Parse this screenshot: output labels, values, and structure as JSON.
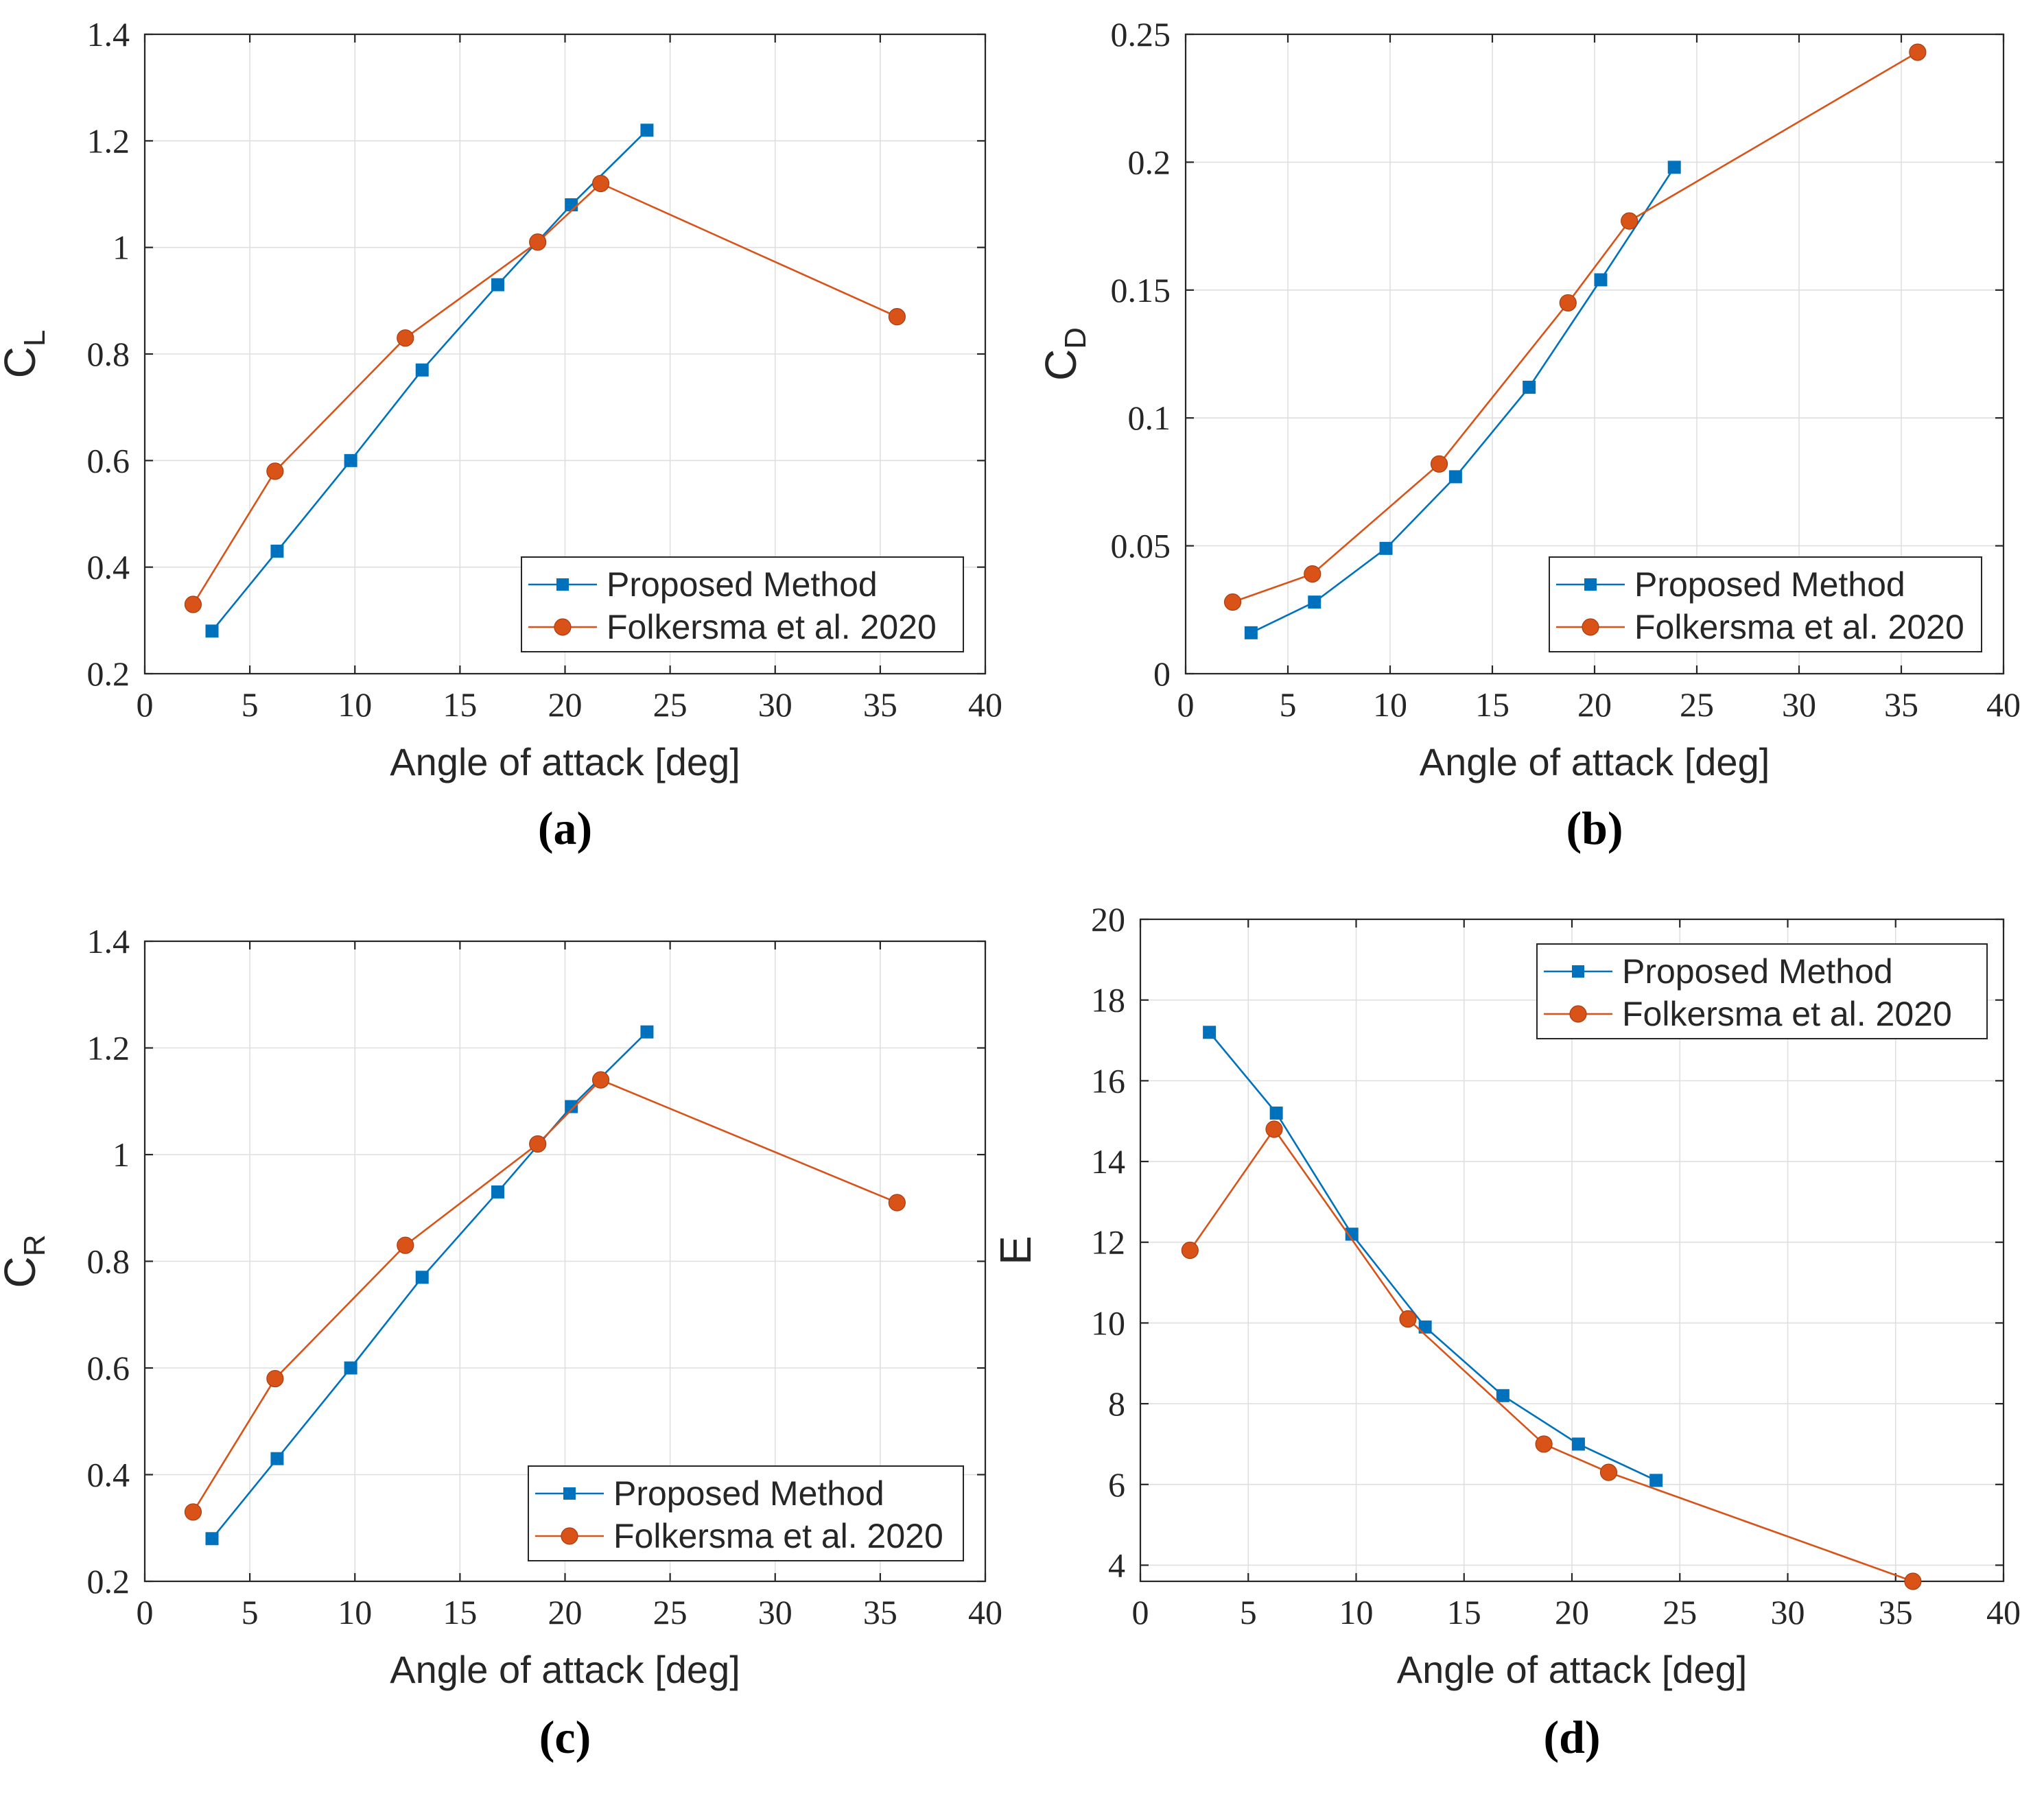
{
  "colors": {
    "proposed": "#0072BD",
    "folkersma": "#D95319",
    "axis": "#262626",
    "grid": "#dfdfdf"
  },
  "legend": {
    "proposed": "Proposed Method",
    "folkersma": "Folkersma et al. 2020"
  },
  "chart_data": [
    {
      "type": "line",
      "caption": "(a)",
      "xlabel": "Angle of attack [deg]",
      "ylabel": {
        "main": "C",
        "sub": "L"
      },
      "xlim": [
        0,
        40
      ],
      "ylim": [
        0.2,
        1.4
      ],
      "xticks": [
        0,
        5,
        10,
        15,
        20,
        25,
        30,
        35,
        40
      ],
      "yticks": [
        0.2,
        0.4,
        0.6,
        0.8,
        1,
        1.2,
        1.4
      ],
      "ytick_labels": [
        "0.2",
        "0.4",
        "0.6",
        "0.8",
        "1",
        "1.2",
        "1.4"
      ],
      "legend_location": "bottom-right",
      "series": [
        {
          "name": "Proposed Method",
          "marker": "square",
          "x": [
            3.2,
            6.3,
            9.8,
            13.2,
            16.8,
            20.3,
            23.9
          ],
          "y": [
            0.28,
            0.43,
            0.6,
            0.77,
            0.93,
            1.08,
            1.22
          ]
        },
        {
          "name": "Folkersma et al. 2020",
          "marker": "circle",
          "x": [
            2.3,
            6.2,
            12.4,
            18.7,
            21.7,
            35.8
          ],
          "y": [
            0.33,
            0.58,
            0.83,
            1.01,
            1.12,
            0.87
          ]
        }
      ]
    },
    {
      "type": "line",
      "caption": "(b)",
      "xlabel": "Angle of attack [deg]",
      "ylabel": {
        "main": "C",
        "sub": "D"
      },
      "xlim": [
        0,
        40
      ],
      "ylim": [
        0,
        0.25
      ],
      "xticks": [
        0,
        5,
        10,
        15,
        20,
        25,
        30,
        35,
        40
      ],
      "yticks": [
        0,
        0.05,
        0.1,
        0.15,
        0.2,
        0.25
      ],
      "ytick_labels": [
        "0",
        "0.05",
        "0.1",
        "0.15",
        "0.2",
        "0.25"
      ],
      "legend_location": "bottom-right",
      "series": [
        {
          "name": "Proposed Method",
          "marker": "square",
          "x": [
            3.2,
            6.3,
            9.8,
            13.2,
            16.8,
            20.3,
            23.9
          ],
          "y": [
            0.016,
            0.028,
            0.049,
            0.077,
            0.112,
            0.154,
            0.198
          ]
        },
        {
          "name": "Folkersma et al. 2020",
          "marker": "circle",
          "x": [
            2.3,
            6.2,
            12.4,
            18.7,
            21.7,
            35.8
          ],
          "y": [
            0.028,
            0.039,
            0.082,
            0.145,
            0.177,
            0.243
          ]
        }
      ]
    },
    {
      "type": "line",
      "caption": "(c)",
      "xlabel": "Angle of attack [deg]",
      "ylabel": {
        "main": "C",
        "sub": "R"
      },
      "xlim": [
        0,
        40
      ],
      "ylim": [
        0.2,
        1.4
      ],
      "xticks": [
        0,
        5,
        10,
        15,
        20,
        25,
        30,
        35,
        40
      ],
      "yticks": [
        0.2,
        0.4,
        0.6,
        0.8,
        1,
        1.2,
        1.4
      ],
      "ytick_labels": [
        "0.2",
        "0.4",
        "0.6",
        "0.8",
        "1",
        "1.2",
        "1.4"
      ],
      "legend_location": "bottom-right",
      "series": [
        {
          "name": "Proposed Method",
          "marker": "square",
          "x": [
            3.2,
            6.3,
            9.8,
            13.2,
            16.8,
            20.3,
            23.9
          ],
          "y": [
            0.28,
            0.43,
            0.6,
            0.77,
            0.93,
            1.09,
            1.23
          ]
        },
        {
          "name": "Folkersma et al. 2020",
          "marker": "circle",
          "x": [
            2.3,
            6.2,
            12.4,
            18.7,
            21.7,
            35.8
          ],
          "y": [
            0.33,
            0.58,
            0.83,
            1.02,
            1.14,
            0.91
          ]
        }
      ]
    },
    {
      "type": "line",
      "caption": "(d)",
      "xlabel": "Angle of attack [deg]",
      "ylabel": {
        "main": "E",
        "sub": ""
      },
      "xlim": [
        0,
        40
      ],
      "ylim": [
        3.6,
        20
      ],
      "xticks": [
        0,
        5,
        10,
        15,
        20,
        25,
        30,
        35,
        40
      ],
      "yticks": [
        4,
        6,
        8,
        10,
        12,
        14,
        16,
        18,
        20
      ],
      "ytick_labels": [
        "4",
        "6",
        "8",
        "10",
        "12",
        "14",
        "16",
        "18",
        "20"
      ],
      "legend_location": "top-right",
      "series": [
        {
          "name": "Proposed Method",
          "marker": "square",
          "x": [
            3.2,
            6.3,
            9.8,
            13.2,
            16.8,
            20.3,
            23.9
          ],
          "y": [
            17.2,
            15.2,
            12.2,
            9.9,
            8.2,
            7.0,
            6.1
          ]
        },
        {
          "name": "Folkersma et al. 2020",
          "marker": "circle",
          "x": [
            2.3,
            6.2,
            12.4,
            18.7,
            21.7,
            35.8
          ],
          "y": [
            11.8,
            14.8,
            10.1,
            7.0,
            6.3,
            3.6
          ]
        }
      ]
    }
  ]
}
